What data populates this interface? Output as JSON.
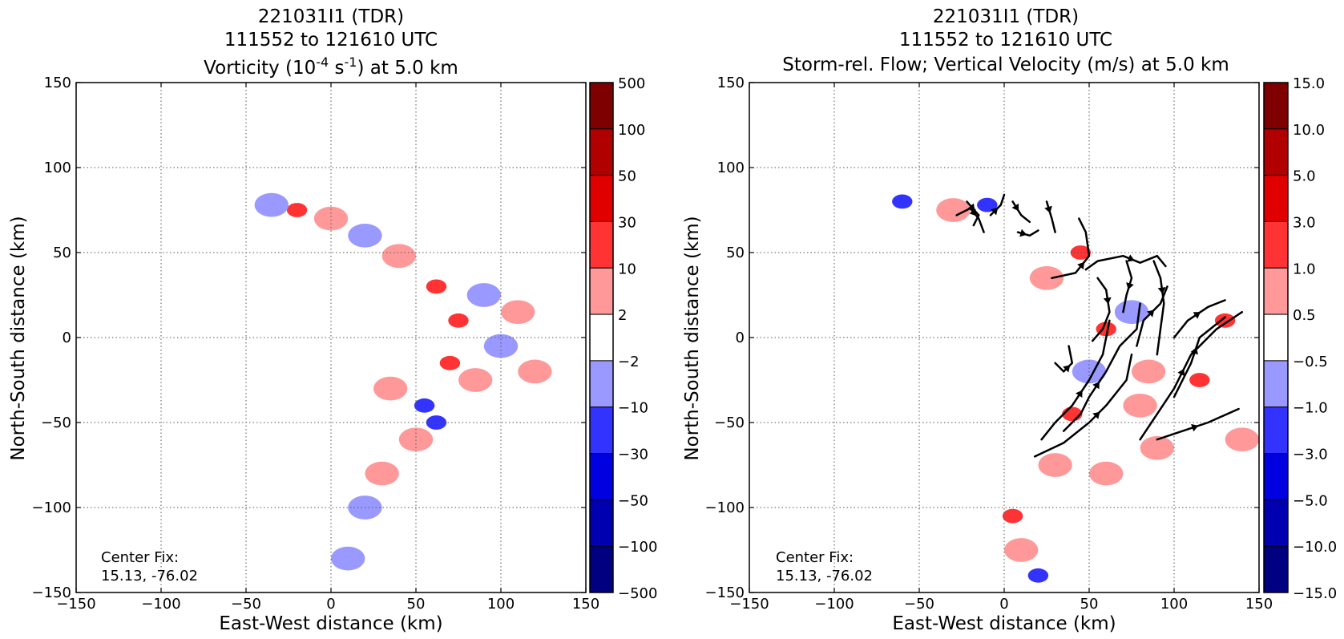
{
  "chart_data": [
    {
      "type": "heatmap",
      "title_lines": [
        "221031I1 (TDR)",
        "111552 to 121610 UTC"
      ],
      "title_var": {
        "pre": "Vorticity (10",
        "sup1": "-4",
        "mid": " s",
        "sup2": "-1",
        "post": ") at 5.0 km"
      },
      "xlabel": "East-West distance (km)",
      "ylabel": "North-South distance (km)",
      "xlim": [
        -150,
        150
      ],
      "ylim": [
        -150,
        150
      ],
      "xticks": [
        -150,
        -100,
        -50,
        0,
        50,
        100,
        150
      ],
      "yticks": [
        -150,
        -100,
        -50,
        0,
        50,
        100,
        150
      ],
      "xtick_labels": [
        "−150",
        "−100",
        "−50",
        "0",
        "50",
        "100",
        "150"
      ],
      "ytick_labels": [
        "−150",
        "−100",
        "−50",
        "0",
        "50",
        "100",
        "150"
      ],
      "grid": true,
      "annotation_lines": [
        "Center Fix:",
        "15.13, -76.02"
      ],
      "colorbar_labels": [
        "500",
        "100",
        "50",
        "30",
        "10",
        "2",
        "−2",
        "−10",
        "−30",
        "−50",
        "−100",
        "−500"
      ],
      "colorbar_colors": [
        "#7f0000",
        "#b00000",
        "#e00000",
        "#ff3333",
        "#ff9999",
        "#ffffff",
        "#9999ff",
        "#3333ff",
        "#0000e0",
        "#0000b0",
        "#000080"
      ],
      "blobs": [
        {
          "x": 62,
          "y": 30,
          "v": 2
        },
        {
          "x": 40,
          "y": 48,
          "v": 1
        },
        {
          "x": 75,
          "y": 10,
          "v": 2
        },
        {
          "x": 85,
          "y": -25,
          "v": 1
        },
        {
          "x": 35,
          "y": -30,
          "v": 1
        },
        {
          "x": 50,
          "y": -60,
          "v": 1
        },
        {
          "x": 30,
          "y": -80,
          "v": 1
        },
        {
          "x": 100,
          "y": -5,
          "v": -1
        },
        {
          "x": 90,
          "y": 25,
          "v": -1
        },
        {
          "x": 55,
          "y": -40,
          "v": -2
        },
        {
          "x": -20,
          "y": 75,
          "v": 2
        },
        {
          "x": -35,
          "y": 78,
          "v": -1
        },
        {
          "x": 120,
          "y": -20,
          "v": 1
        },
        {
          "x": 20,
          "y": -100,
          "v": -1
        },
        {
          "x": 10,
          "y": -130,
          "v": -1
        },
        {
          "x": 0,
          "y": 70,
          "v": 1
        },
        {
          "x": 110,
          "y": 15,
          "v": 1
        },
        {
          "x": 70,
          "y": -15,
          "v": 2
        },
        {
          "x": 20,
          "y": 60,
          "v": -1
        },
        {
          "x": 62,
          "y": -50,
          "v": -2
        }
      ]
    },
    {
      "type": "heatmap",
      "title_lines": [
        "221031I1 (TDR)",
        "111552 to 121610 UTC",
        "Storm-rel. Flow; Vertical Velocity (m/s) at 5.0 km"
      ],
      "xlabel": "East-West distance (km)",
      "ylabel": "North-South distance (km)",
      "xlim": [
        -150,
        150
      ],
      "ylim": [
        -150,
        150
      ],
      "xticks": [
        -150,
        -100,
        -50,
        0,
        50,
        100,
        150
      ],
      "yticks": [
        -150,
        -100,
        -50,
        0,
        50,
        100,
        150
      ],
      "xtick_labels": [
        "−150",
        "−100",
        "−50",
        "0",
        "50",
        "100",
        "150"
      ],
      "ytick_labels": [
        "−150",
        "−100",
        "−50",
        "0",
        "50",
        "100",
        "150"
      ],
      "grid": true,
      "annotation_lines": [
        "Center Fix:",
        "15.13, -76.02"
      ],
      "colorbar_labels": [
        "15.0",
        "10.0",
        "5.0",
        "3.0",
        "1.0",
        "0.5",
        "−0.5",
        "−1.0",
        "−3.0",
        "−5.0",
        "−10.0",
        "−15.0"
      ],
      "colorbar_colors": [
        "#7f0000",
        "#b00000",
        "#e00000",
        "#ff3333",
        "#ff9999",
        "#ffffff",
        "#9999ff",
        "#3333ff",
        "#0000e0",
        "#0000b0",
        "#000080"
      ],
      "blobs": [
        {
          "x": 60,
          "y": 5,
          "v": 2
        },
        {
          "x": 115,
          "y": -25,
          "v": 2
        },
        {
          "x": 40,
          "y": -45,
          "v": 2
        },
        {
          "x": 45,
          "y": 50,
          "v": 2
        },
        {
          "x": 80,
          "y": -40,
          "v": 1
        },
        {
          "x": 60,
          "y": -80,
          "v": 1
        },
        {
          "x": 130,
          "y": 10,
          "v": 2
        },
        {
          "x": 25,
          "y": 35,
          "v": 1
        },
        {
          "x": 50,
          "y": -20,
          "v": -1
        },
        {
          "x": 75,
          "y": 15,
          "v": -1
        },
        {
          "x": -10,
          "y": 78,
          "v": -2
        },
        {
          "x": -60,
          "y": 80,
          "v": -2
        },
        {
          "x": -30,
          "y": 75,
          "v": 1
        },
        {
          "x": 10,
          "y": -125,
          "v": 1
        },
        {
          "x": 5,
          "y": -105,
          "v": 2
        },
        {
          "x": 140,
          "y": -60,
          "v": 1
        },
        {
          "x": 90,
          "y": -65,
          "v": 1
        },
        {
          "x": 20,
          "y": -140,
          "v": -2
        },
        {
          "x": 30,
          "y": -75,
          "v": 1
        },
        {
          "x": 85,
          "y": -20,
          "v": 1
        }
      ],
      "streamlines": [
        [
          [
            -28,
            72
          ],
          [
            -20,
            76
          ],
          [
            -15,
            70
          ],
          [
            -12,
            62
          ]
        ],
        [
          [
            -22,
            80
          ],
          [
            -15,
            72
          ],
          [
            -18,
            66
          ]
        ],
        [
          [
            8,
            62
          ],
          [
            15,
            60
          ],
          [
            20,
            63
          ]
        ],
        [
          [
            5,
            80
          ],
          [
            10,
            72
          ],
          [
            15,
            68
          ]
        ],
        [
          [
            25,
            80
          ],
          [
            28,
            70
          ],
          [
            30,
            62
          ]
        ],
        [
          [
            28,
            35
          ],
          [
            42,
            38
          ],
          [
            50,
            48
          ],
          [
            48,
            62
          ],
          [
            44,
            70
          ]
        ],
        [
          [
            48,
            40
          ],
          [
            55,
            45
          ],
          [
            70,
            48
          ],
          [
            80,
            44
          ],
          [
            90,
            48
          ],
          [
            95,
            42
          ]
        ],
        [
          [
            55,
            35
          ],
          [
            60,
            28
          ],
          [
            62,
            15
          ],
          [
            58,
            5
          ],
          [
            52,
            -2
          ]
        ],
        [
          [
            72,
            45
          ],
          [
            75,
            35
          ],
          [
            72,
            25
          ],
          [
            70,
            15
          ]
        ],
        [
          [
            88,
            45
          ],
          [
            92,
            35
          ],
          [
            94,
            20
          ],
          [
            92,
            5
          ],
          [
            90,
            -10
          ]
        ],
        [
          [
            78,
            -5
          ],
          [
            82,
            10
          ],
          [
            92,
            20
          ],
          [
            96,
            30
          ]
        ],
        [
          [
            22,
            -60
          ],
          [
            30,
            -50
          ],
          [
            40,
            -40
          ],
          [
            50,
            -25
          ],
          [
            58,
            -10
          ],
          [
            62,
            10
          ]
        ],
        [
          [
            35,
            -55
          ],
          [
            45,
            -45
          ],
          [
            50,
            -35
          ],
          [
            60,
            -20
          ],
          [
            68,
            -5
          ],
          [
            78,
            5
          ],
          [
            80,
            20
          ]
        ],
        [
          [
            18,
            -70
          ],
          [
            35,
            -62
          ],
          [
            50,
            -50
          ],
          [
            60,
            -40
          ],
          [
            72,
            -25
          ],
          [
            75,
            -10
          ]
        ],
        [
          [
            80,
            -60
          ],
          [
            90,
            -45
          ],
          [
            100,
            -30
          ],
          [
            110,
            -10
          ],
          [
            125,
            5
          ],
          [
            140,
            15
          ]
        ],
        [
          [
            100,
            -35
          ],
          [
            110,
            -15
          ],
          [
            115,
            0
          ],
          [
            130,
            12
          ]
        ],
        [
          [
            100,
            0
          ],
          [
            108,
            10
          ],
          [
            120,
            18
          ],
          [
            130,
            22
          ]
        ],
        [
          [
            90,
            -60
          ],
          [
            105,
            -55
          ],
          [
            120,
            -50
          ],
          [
            138,
            -42
          ]
        ],
        [
          [
            30,
            -15
          ],
          [
            35,
            -20
          ],
          [
            40,
            -15
          ],
          [
            38,
            -5
          ]
        ],
        [
          [
            -8,
            72
          ],
          [
            -2,
            78
          ],
          [
            0,
            84
          ]
        ]
      ]
    }
  ]
}
